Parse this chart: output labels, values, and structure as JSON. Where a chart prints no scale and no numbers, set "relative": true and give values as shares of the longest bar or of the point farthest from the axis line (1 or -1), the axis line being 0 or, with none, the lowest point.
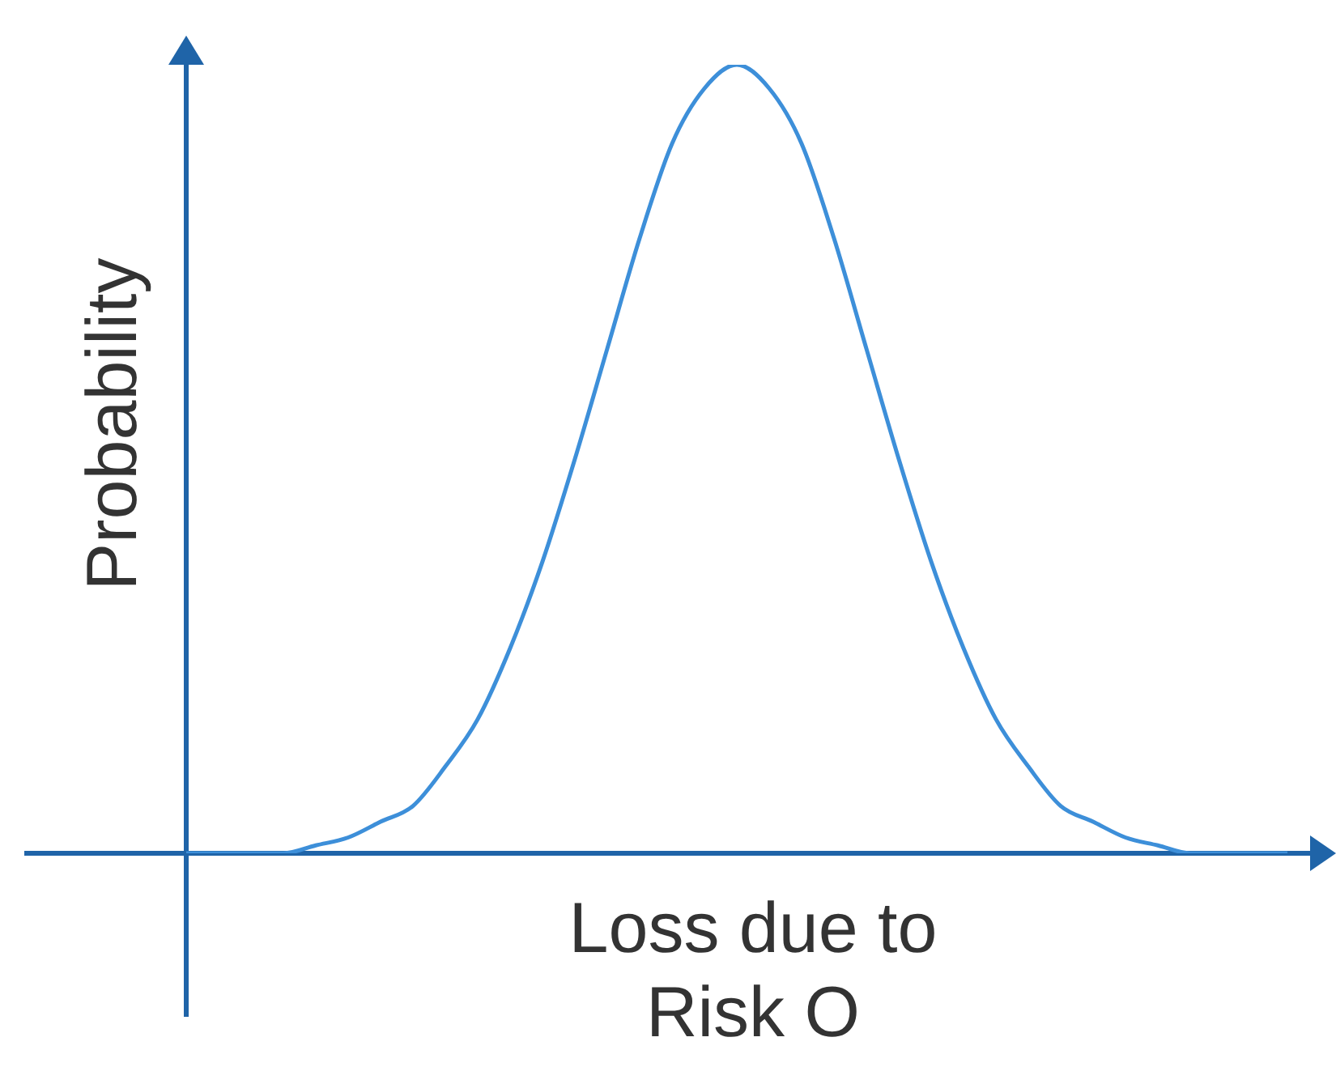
{
  "chart_data": {
    "type": "line",
    "relative": true,
    "xlabel": "Loss due to Risk O",
    "ylabel": "Probability",
    "color": "#3d8fd9",
    "marker": "none",
    "categories": [
      null,
      null,
      null,
      null,
      null,
      null,
      null,
      null,
      null,
      null,
      null,
      null,
      null,
      null,
      null,
      null,
      null,
      null,
      null,
      null,
      null,
      null,
      null,
      null,
      null,
      null,
      null,
      null,
      null,
      null,
      null,
      null,
      null,
      null,
      null
    ],
    "values": [
      0.0,
      0.0,
      0.0,
      0.0,
      0.01,
      0.02,
      0.04,
      0.06,
      0.11,
      0.17,
      0.26,
      0.37,
      0.5,
      0.64,
      0.78,
      0.9,
      0.97,
      1.0,
      0.97,
      0.9,
      0.78,
      0.64,
      0.5,
      0.37,
      0.26,
      0.17,
      0.11,
      0.06,
      0.04,
      0.02,
      0.01,
      0.0,
      0.0,
      0.0,
      0.0
    ]
  }
}
